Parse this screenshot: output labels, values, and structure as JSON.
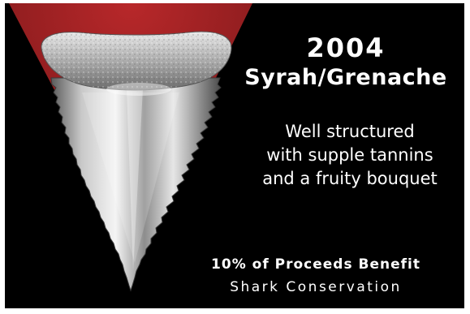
{
  "label": {
    "year": "2004",
    "varietal": "Syrah/Grenache",
    "notes": [
      "Well structured",
      "with supple tannins",
      "and a fruity bouquet"
    ],
    "benefit": "10% of Proceeds Benefit",
    "cause": "Shark Conservation"
  },
  "art": {
    "subject": "shark-tooth-illustration",
    "background_color": "#000000",
    "accent_color": "#8f1d1f"
  }
}
